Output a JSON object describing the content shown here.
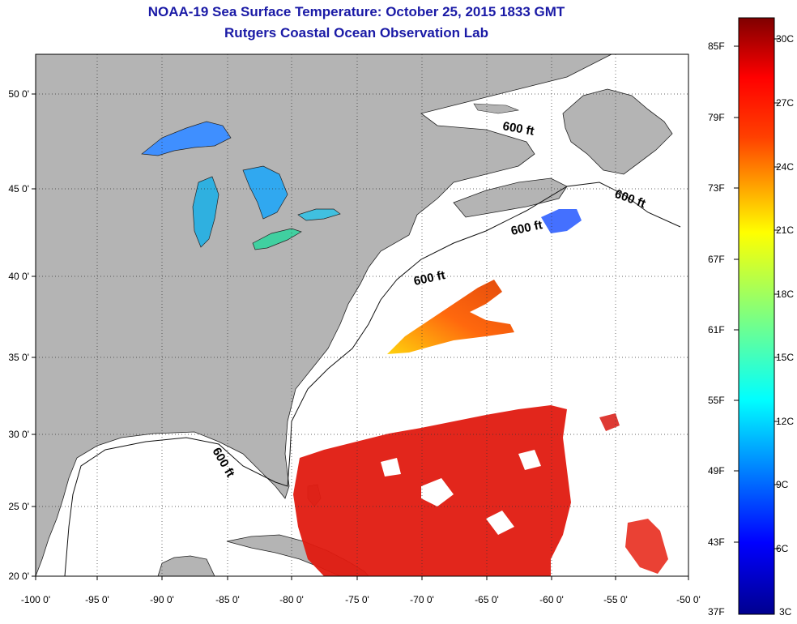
{
  "title": {
    "line1": "NOAA-19 Sea Surface Temperature:  October 25, 2015 1833 GMT",
    "line2": "Rutgers Coastal Ocean Observation Lab"
  },
  "map": {
    "lon_range": [
      -100,
      -50
    ],
    "lat_range": [
      20,
      52.5
    ],
    "x_ticks": [
      "-100 0'",
      "-95 0'",
      "-90 0'",
      "-85 0'",
      "-80 0'",
      "-75 0'",
      "-70 0'",
      "-65 0'",
      "-60 0'",
      "-55 0'",
      "-50 0'"
    ],
    "y_ticks": [
      "50 0'",
      "45 0'",
      "40 0'",
      "35 0'",
      "30 0'",
      "25 0'",
      "20 0'"
    ],
    "grid": "dotted",
    "land_color": "#b4b4b4",
    "water_color": "#ffffff",
    "isobath_labels": [
      "600 ft",
      "600 ft",
      "600 ft",
      "600 ft",
      "600 ft"
    ]
  },
  "colorbar": {
    "fahrenheit_labels": [
      "85F",
      "79F",
      "73F",
      "67F",
      "61F",
      "55F",
      "49F",
      "43F",
      "37F"
    ],
    "celsius_labels": [
      "30C",
      "27C",
      "24C",
      "21C",
      "18C",
      "15C",
      "12C",
      "9C",
      "6C",
      "3C"
    ],
    "color_top": "#7f0000",
    "color_bottom": "#00008f"
  }
}
